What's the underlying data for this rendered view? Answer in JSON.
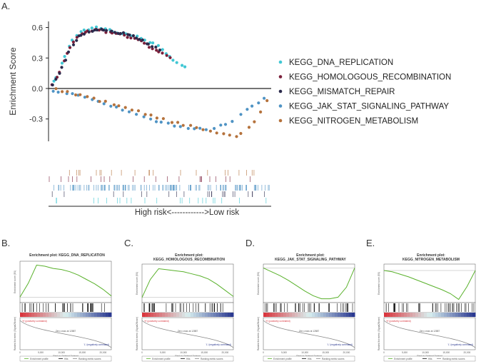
{
  "panels": {
    "A": "A.",
    "B": "B.",
    "C": "C.",
    "D": "D.",
    "E": "E."
  },
  "colors": {
    "KEGG_DNA_REPLICATION": "#41c7d4",
    "KEGG_HOMOLOGOUS_RECOMBINATION": "#7a1f3a",
    "KEGG_MISMATCH_REPAIR": "#2b2a4c",
    "KEGG_JAK_STAT_SIGNALING_PATHWAY": "#4f93c4",
    "KEGG_NITROGEN_METABOLISM": "#b5723c",
    "green": "#59b12b",
    "heat_red": "#d9363e",
    "heat_blue": "#2b3990"
  },
  "chart_data": [
    {
      "type": "scatter",
      "title": "",
      "ylabel": "Enrichment Score",
      "xlabel": "High risk<------------>Low risk",
      "ylim": [
        -0.52,
        0.66
      ],
      "yticks": [
        "0.6",
        "0.3",
        "0.0",
        "-0.3"
      ],
      "yticks_values": [
        0.6,
        0.3,
        0.0,
        -0.3
      ],
      "legend_position": "right",
      "series": [
        {
          "name": "KEGG_DNA_REPLICATION",
          "x": [
            0.02,
            0.06,
            0.1,
            0.14,
            0.18,
            0.22,
            0.26,
            0.3,
            0.34,
            0.4,
            0.45,
            0.5,
            0.55,
            0.62
          ],
          "y": [
            0.04,
            0.25,
            0.45,
            0.56,
            0.58,
            0.6,
            0.59,
            0.56,
            0.54,
            0.51,
            0.47,
            0.41,
            0.3,
            0.2
          ]
        },
        {
          "name": "KEGG_HOMOLOGOUS_RECOMBINATION",
          "x": [
            0.02,
            0.06,
            0.1,
            0.14,
            0.18,
            0.22,
            0.26,
            0.3,
            0.34,
            0.4,
            0.45,
            0.5,
            0.55
          ],
          "y": [
            0.03,
            0.22,
            0.42,
            0.53,
            0.57,
            0.58,
            0.56,
            0.54,
            0.52,
            0.49,
            0.42,
            0.36,
            0.3
          ]
        },
        {
          "name": "KEGG_MISMATCH_REPAIR",
          "x": [
            0.02,
            0.06,
            0.1,
            0.14,
            0.18,
            0.22,
            0.26,
            0.3,
            0.34,
            0.4,
            0.45,
            0.5
          ],
          "y": [
            0.03,
            0.2,
            0.4,
            0.52,
            0.56,
            0.58,
            0.57,
            0.55,
            0.54,
            0.5,
            0.44,
            0.38
          ]
        },
        {
          "name": "KEGG_JAK_STAT_SIGNALING_PATHWAY",
          "x": [
            0.02,
            0.08,
            0.16,
            0.24,
            0.32,
            0.4,
            0.48,
            0.56,
            0.64,
            0.7,
            0.76,
            0.82,
            0.86,
            0.9,
            0.94,
            0.98
          ],
          "y": [
            -0.03,
            -0.04,
            -0.08,
            -0.14,
            -0.2,
            -0.26,
            -0.32,
            -0.36,
            -0.4,
            -0.4,
            -0.38,
            -0.34,
            -0.28,
            -0.2,
            -0.15,
            -0.08
          ]
        },
        {
          "name": "KEGG_NITROGEN_METABOLISM",
          "x": [
            0.03,
            0.1,
            0.2,
            0.3,
            0.4,
            0.5,
            0.58,
            0.66,
            0.74,
            0.8,
            0.84,
            0.87,
            0.9,
            0.93,
            0.96,
            0.99
          ],
          "y": [
            0.0,
            -0.05,
            -0.1,
            -0.16,
            -0.22,
            -0.29,
            -0.34,
            -0.38,
            -0.42,
            -0.45,
            -0.48,
            -0.44,
            -0.4,
            -0.32,
            -0.22,
            -0.12
          ]
        }
      ]
    },
    {
      "type": "line",
      "panel": "B",
      "title": "Enrichment plot: KEGG_DNA_REPLICATION",
      "ylabel": "Enrichment score (ES)",
      "xlabel": "Rank in Ordered Dataset",
      "ylim": [
        -0.1,
        0.65
      ],
      "x": [
        0,
        2000,
        4000,
        6000,
        8000,
        10000,
        12000,
        14000,
        16000,
        18000,
        20000,
        22000
      ],
      "values": [
        0.0,
        0.25,
        0.58,
        0.56,
        0.52,
        0.5,
        0.46,
        0.4,
        0.32,
        0.24,
        0.14,
        0.02
      ]
    },
    {
      "type": "line",
      "panel": "C",
      "title": "Enrichment plot: KEGG_HOMOLOGOUS_RECOMBINATION",
      "ylabel": "Enrichment score (ES)",
      "xlabel": "Rank in Ordered Dataset",
      "ylim": [
        -0.1,
        0.65
      ],
      "x": [
        0,
        2000,
        4000,
        6000,
        8000,
        10000,
        12000,
        14000,
        16000,
        18000,
        20000,
        22000
      ],
      "values": [
        0.0,
        0.35,
        0.56,
        0.54,
        0.52,
        0.5,
        0.46,
        0.42,
        0.36,
        0.26,
        0.14,
        0.02
      ]
    },
    {
      "type": "line",
      "panel": "D",
      "title": "Enrichment plot: KEGG_JAK_STAT_SIGNALING_PATHWAY",
      "ylabel": "Enrichment score (ES)",
      "xlabel": "Rank in Ordered Dataset",
      "ylim": [
        -0.45,
        0.05
      ],
      "x": [
        0,
        2000,
        4000,
        6000,
        8000,
        10000,
        12000,
        14000,
        16000,
        18000,
        20000,
        22000
      ],
      "values": [
        0.0,
        -0.05,
        -0.1,
        -0.16,
        -0.23,
        -0.3,
        -0.36,
        -0.4,
        -0.4,
        -0.38,
        -0.25,
        0.0
      ]
    },
    {
      "type": "line",
      "panel": "E",
      "title": "Enrichment plot: KEGG_NITROGEN_METABOLISM",
      "ylabel": "Enrichment score (ES)",
      "xlabel": "Rank in Ordered Dataset",
      "ylim": [
        -0.5,
        0.1
      ],
      "x": [
        0,
        2000,
        4000,
        6000,
        8000,
        10000,
        12000,
        14000,
        16000,
        18000,
        20000,
        22000
      ],
      "values": [
        0.0,
        -0.02,
        -0.06,
        -0.1,
        -0.15,
        -0.2,
        -0.25,
        -0.3,
        -0.36,
        -0.45,
        -0.25,
        0.0
      ]
    }
  ],
  "small_labels": {
    "xticks": [
      "0",
      "5,000",
      "10,000",
      "15,000",
      "20,000"
    ],
    "ranked_ylabel": "Ranked list metric (Signal2Noise)",
    "zero_cross": "Zero cross at 12887",
    "pos_label": "'H' (positively correlated)",
    "neg_label": "'L' (negatively correlated)",
    "legend_items": [
      "Enrichment profile",
      "Hits",
      "Ranking metric scores"
    ]
  }
}
